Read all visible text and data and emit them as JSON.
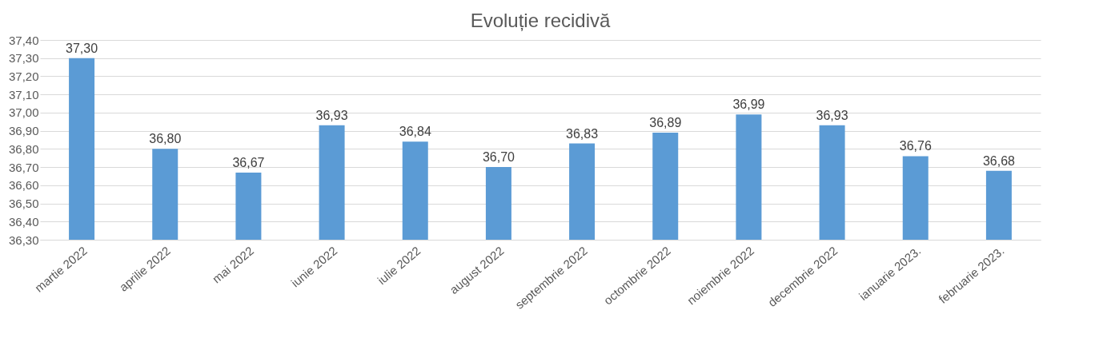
{
  "chart_data": {
    "type": "bar",
    "title": "Evoluție recidivă",
    "categories": [
      "martie 2022",
      "aprilie 2022",
      "mai 2022",
      "iunie 2022",
      "iulie 2022",
      "august 2022",
      "septembrie 2022",
      "octombrie 2022",
      "noiembrie 2022",
      "decembrie 2022",
      "ianuarie 2023.",
      "februarie 2023."
    ],
    "series": [
      {
        "color": "#5b9bd5",
        "values": [
          37.3,
          36.8,
          36.67,
          36.93,
          36.84,
          36.7,
          36.83,
          36.89,
          36.99,
          36.93,
          36.76,
          36.68
        ],
        "value_labels": [
          "37,30",
          "36,80",
          "36,67",
          "36,93",
          "36,84",
          "36,70",
          "36,83",
          "36,89",
          "36,99",
          "36,93",
          "36,76",
          "36,68"
        ]
      }
    ],
    "ylim": [
      36.3,
      37.4
    ],
    "yticks": [
      {
        "value": 36.3,
        "label": "36,30"
      },
      {
        "value": 36.4,
        "label": "36,40"
      },
      {
        "value": 36.5,
        "label": "36,50"
      },
      {
        "value": 36.6,
        "label": "36,60"
      },
      {
        "value": 36.7,
        "label": "36,70"
      },
      {
        "value": 36.8,
        "label": "36,80"
      },
      {
        "value": 36.9,
        "label": "36,90"
      },
      {
        "value": 37.0,
        "label": "37,00"
      },
      {
        "value": 37.1,
        "label": "37,10"
      },
      {
        "value": 37.2,
        "label": "37,20"
      },
      {
        "value": 37.3,
        "label": "37,30"
      },
      {
        "value": 37.4,
        "label": "37,40"
      }
    ],
    "grid": "y"
  }
}
